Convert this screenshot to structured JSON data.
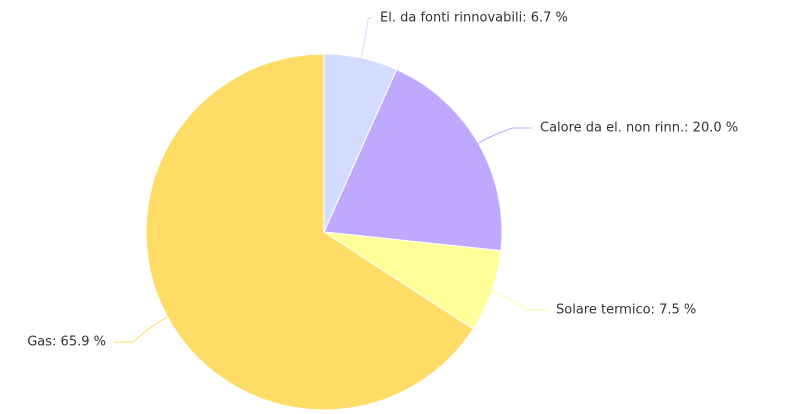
{
  "chart_data": {
    "type": "pie",
    "values": [
      6.7,
      20.0,
      7.5,
      65.9
    ],
    "value_labels": [
      "El. da fonti rinnovabili: 6.7 %",
      "Calore da el. non rinn.: 20.0 %",
      "Solare termico: 7.5 %",
      "Gas: 65.9 %"
    ],
    "colors": [
      "#d3dcff",
      "#bea9ff",
      "#ffff99",
      "#ffdc66"
    ]
  }
}
